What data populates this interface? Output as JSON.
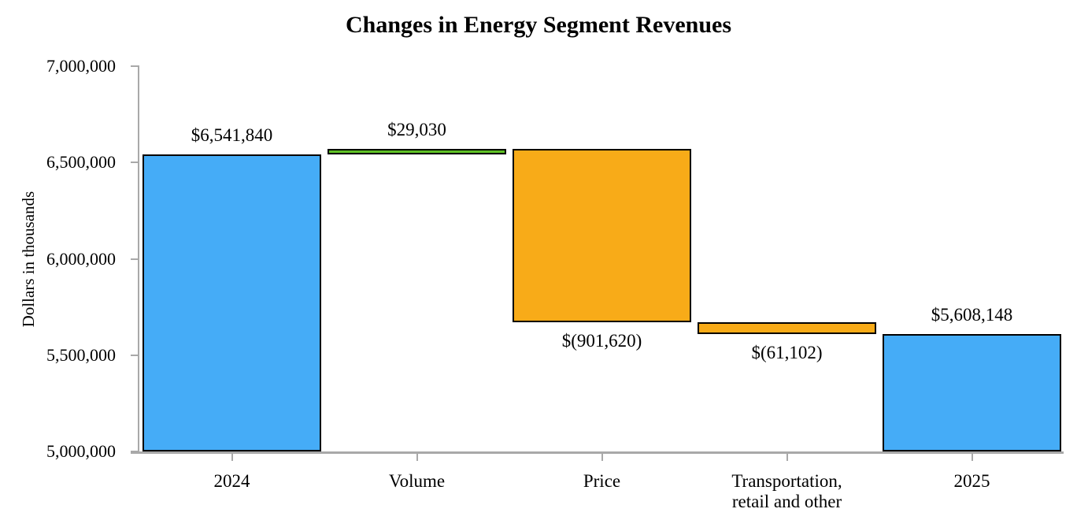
{
  "chart_data": {
    "type": "bar",
    "subtype": "waterfall",
    "title": "Changes in Energy Segment Revenues",
    "ylabel": "Dollars in thousands",
    "xlabel": "",
    "ylim": [
      5000000,
      7000000
    ],
    "ytick_step": 500000,
    "ytick_labels": [
      "5,000,000",
      "5,500,000",
      "6,000,000",
      "6,500,000",
      "7,000,000"
    ],
    "grid": "off",
    "legend": "none",
    "axis_color": "#A9A9A9",
    "bar_border_color": "#000000",
    "colors": {
      "total": "#45ACF7",
      "increase": "#5FC125",
      "decrease": "#F8AB18"
    },
    "categories": [
      "2024",
      "Volume",
      "Price",
      "Transportation, retail and other",
      "2025"
    ],
    "bars": [
      {
        "category": "2024",
        "category_lines": [
          "2024"
        ],
        "role": "total",
        "value": 6541840,
        "base": 5000000,
        "top": 6541840,
        "label": "$6,541,840",
        "label_position": "above",
        "color": "#45ACF7"
      },
      {
        "category": "Volume",
        "category_lines": [
          "Volume"
        ],
        "role": "increase",
        "value": 29030,
        "base": 6541840,
        "top": 6570870,
        "label": "$29,030",
        "label_position": "above",
        "color": "#5FC125"
      },
      {
        "category": "Price",
        "category_lines": [
          "Price"
        ],
        "role": "decrease",
        "value": -901620,
        "base": 5669250,
        "top": 6570870,
        "label": "$(901,620)",
        "label_position": "below",
        "color": "#F8AB18"
      },
      {
        "category": "Transportation, retail and other",
        "category_lines": [
          "Transportation,",
          "retail and other"
        ],
        "role": "decrease",
        "value": -61102,
        "base": 5608148,
        "top": 5669250,
        "label": "$(61,102)",
        "label_position": "below",
        "color": "#F8AB18"
      },
      {
        "category": "2025",
        "category_lines": [
          "2025"
        ],
        "role": "total",
        "value": 5608148,
        "base": 5000000,
        "top": 5608148,
        "label": "$5,608,148",
        "label_position": "above",
        "color": "#45ACF7"
      }
    ]
  }
}
